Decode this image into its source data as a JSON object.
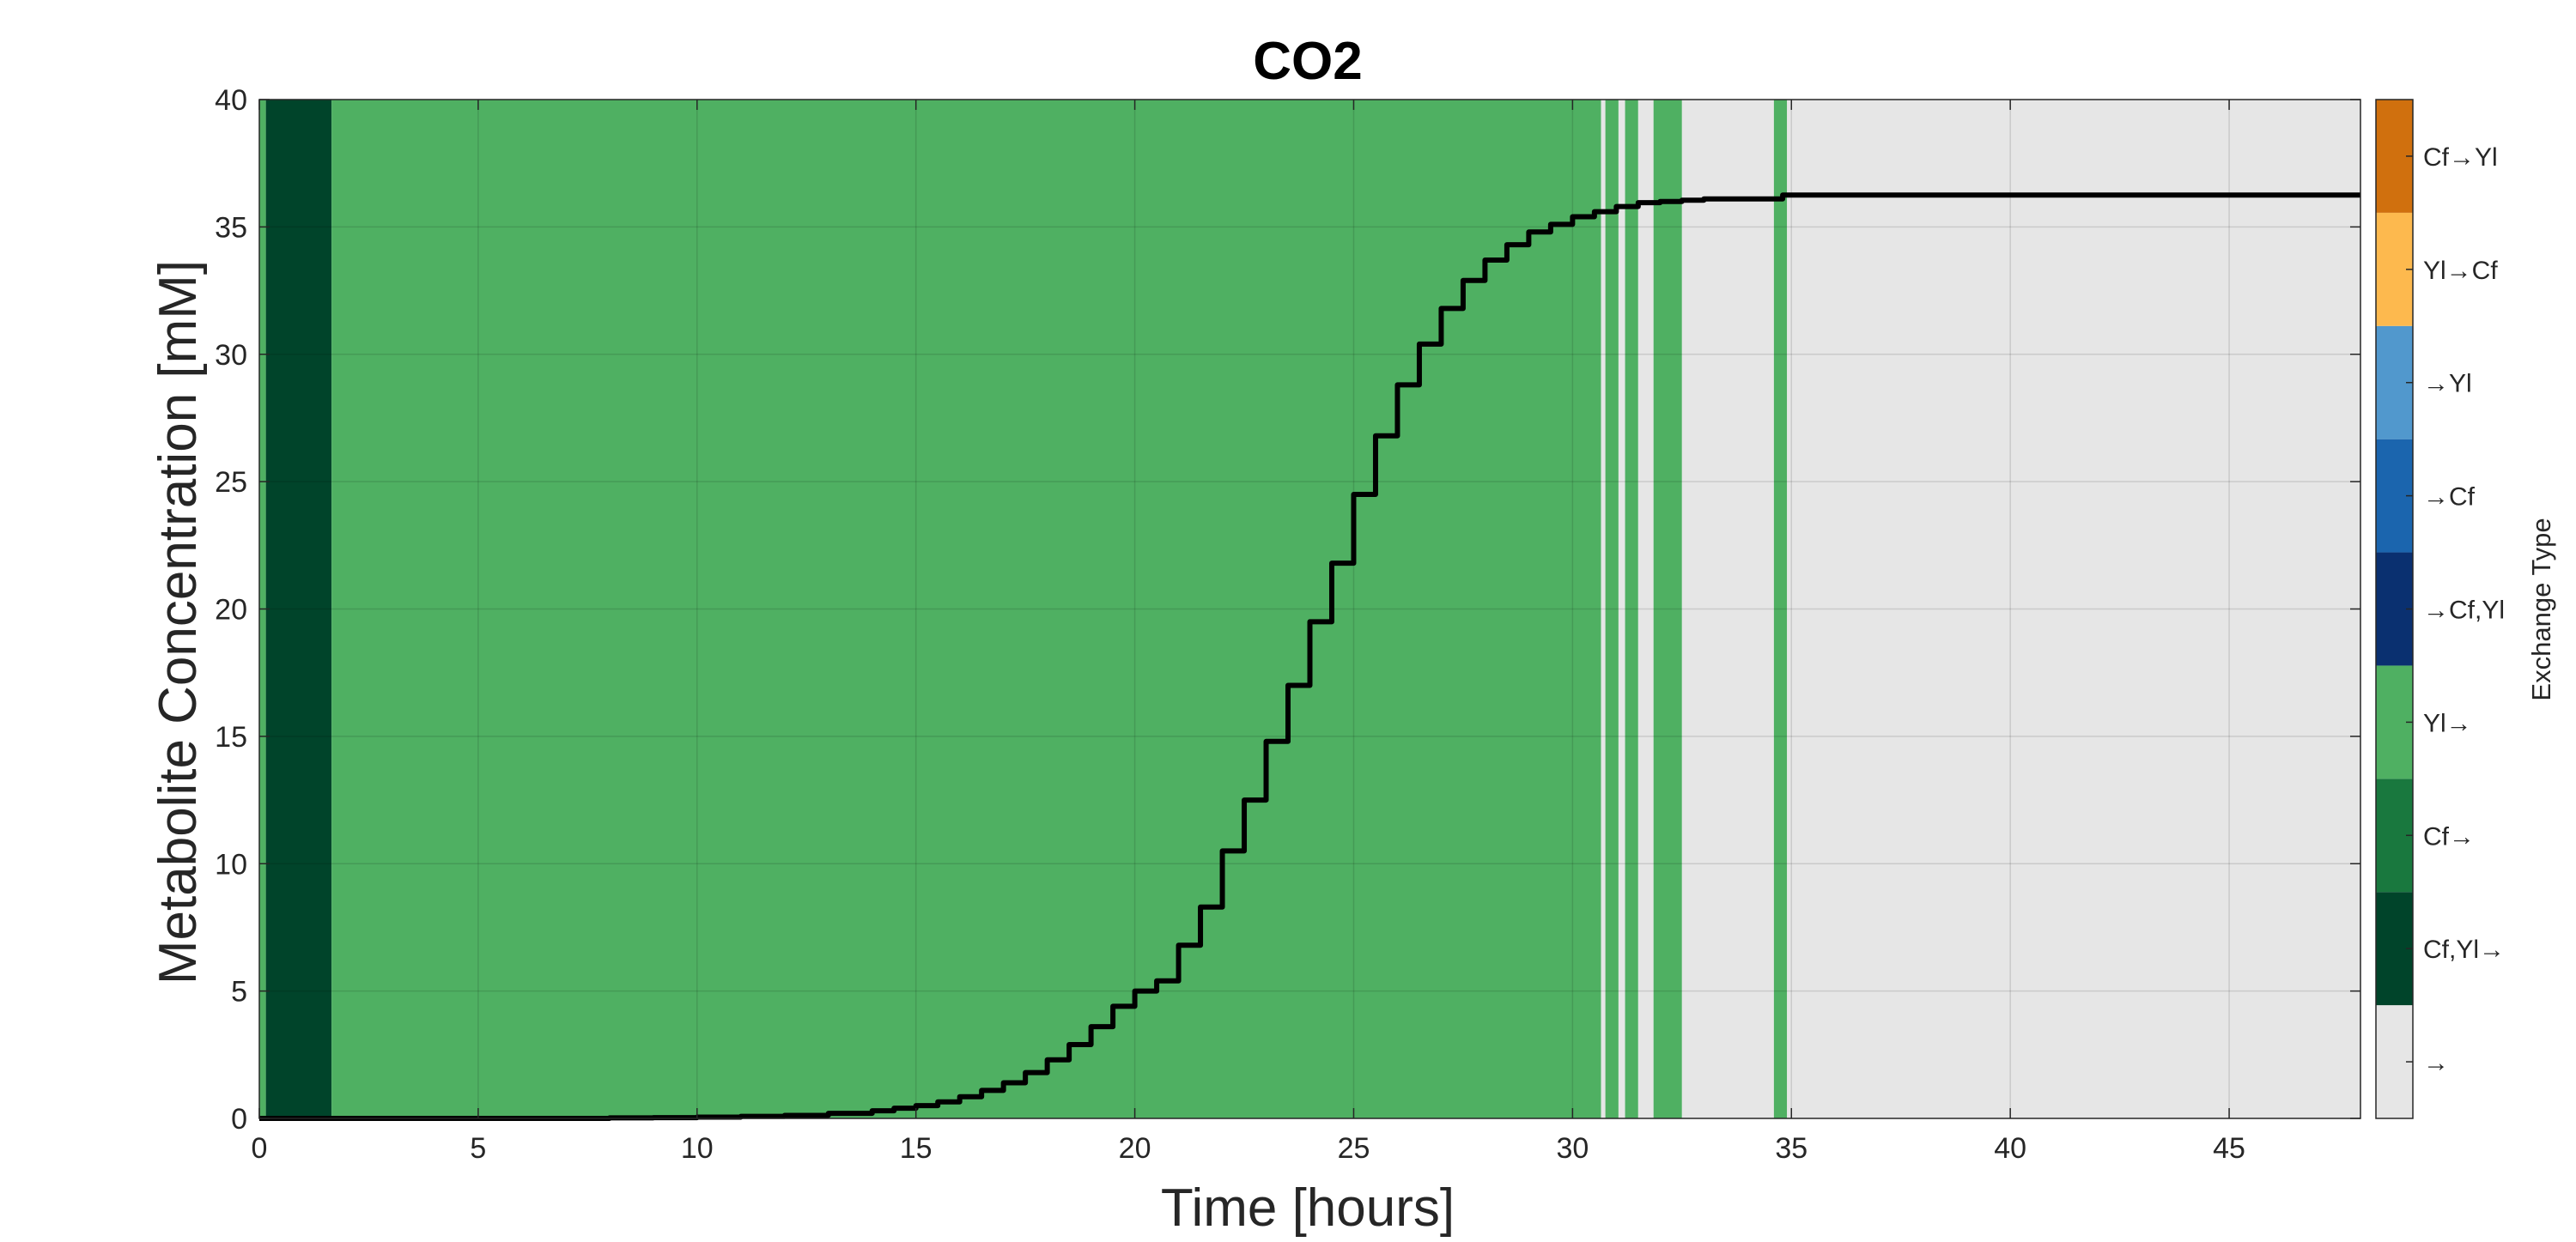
{
  "chart_data": {
    "type": "line",
    "title": "CO2",
    "xlabel": "Time [hours]",
    "ylabel": "Metabolite Concentration [mM]",
    "xlim": [
      0,
      48
    ],
    "ylim": [
      0,
      40
    ],
    "xticks": [
      "0",
      "5",
      "10",
      "15",
      "20",
      "25",
      "30",
      "35",
      "40",
      "45"
    ],
    "yticks": [
      "0",
      "5",
      "10",
      "15",
      "20",
      "25",
      "30",
      "35",
      "40"
    ],
    "grid": true,
    "series": [
      {
        "x": [
          0,
          2,
          4,
          6,
          8,
          9,
          10,
          11,
          12,
          13,
          14,
          14.5,
          15,
          15.5,
          16,
          16.5,
          17,
          17.5,
          18,
          18.5,
          19,
          19.5,
          20,
          20.5,
          21,
          21.5,
          22,
          22.5,
          23,
          23.5,
          24,
          24.5,
          25,
          25.5,
          26,
          26.5,
          27,
          27.5,
          28,
          28.5,
          29,
          29.5,
          30,
          30.5,
          31,
          31.5,
          32,
          32.5,
          33,
          34,
          34.8,
          35,
          36,
          38,
          40,
          42,
          44,
          46,
          48
        ],
        "y": [
          0,
          0,
          0,
          0,
          0.02,
          0.03,
          0.05,
          0.08,
          0.12,
          0.2,
          0.3,
          0.4,
          0.5,
          0.65,
          0.85,
          1.1,
          1.4,
          1.8,
          2.3,
          2.9,
          3.6,
          4.4,
          5.0,
          5.4,
          6.8,
          8.3,
          10.5,
          12.5,
          14.8,
          17.0,
          19.5,
          21.8,
          24.5,
          26.8,
          28.8,
          30.4,
          31.8,
          32.9,
          33.7,
          34.3,
          34.8,
          35.1,
          35.4,
          35.6,
          35.8,
          35.95,
          36.0,
          36.05,
          36.1,
          36.1,
          36.25,
          36.25,
          36.25,
          36.25,
          36.25,
          36.25,
          36.25,
          36.25,
          36.25
        ]
      }
    ],
    "background_bands": [
      {
        "x0": 0,
        "x1": 0.15,
        "category": "Yl→"
      },
      {
        "x0": 0.15,
        "x1": 1.65,
        "category": "Cf,Yl→"
      },
      {
        "x0": 1.65,
        "x1": 30.65,
        "category": "Yl→"
      },
      {
        "x0": 30.65,
        "x1": 30.75,
        "category": "→"
      },
      {
        "x0": 30.75,
        "x1": 31.05,
        "category": "Yl→"
      },
      {
        "x0": 31.05,
        "x1": 31.2,
        "category": "→"
      },
      {
        "x0": 31.2,
        "x1": 31.5,
        "category": "Yl→"
      },
      {
        "x0": 31.5,
        "x1": 31.85,
        "category": "→"
      },
      {
        "x0": 31.85,
        "x1": 32.5,
        "category": "Yl→"
      },
      {
        "x0": 32.5,
        "x1": 34.6,
        "category": "→"
      },
      {
        "x0": 34.6,
        "x1": 34.9,
        "category": "Yl→"
      },
      {
        "x0": 34.9,
        "x1": 48,
        "category": "→"
      }
    ],
    "colorbar": {
      "title": "Exchange Type",
      "categories": [
        {
          "label": "→",
          "color": "#e6e6e6"
        },
        {
          "label": "Cf,Yl→",
          "color": "#00442a"
        },
        {
          "label": "Cf→",
          "color": "#19783e"
        },
        {
          "label": "Yl→",
          "color": "#4fb062"
        },
        {
          "label": "→Cf,Yl",
          "color": "#0a3070"
        },
        {
          "label": "→Cf",
          "color": "#1b65ae"
        },
        {
          "label": "→Yl",
          "color": "#5198cd"
        },
        {
          "label": "Yl→Cf",
          "color": "#fdb94e"
        },
        {
          "label": "Cf→Yl",
          "color": "#d0700e"
        }
      ]
    }
  }
}
